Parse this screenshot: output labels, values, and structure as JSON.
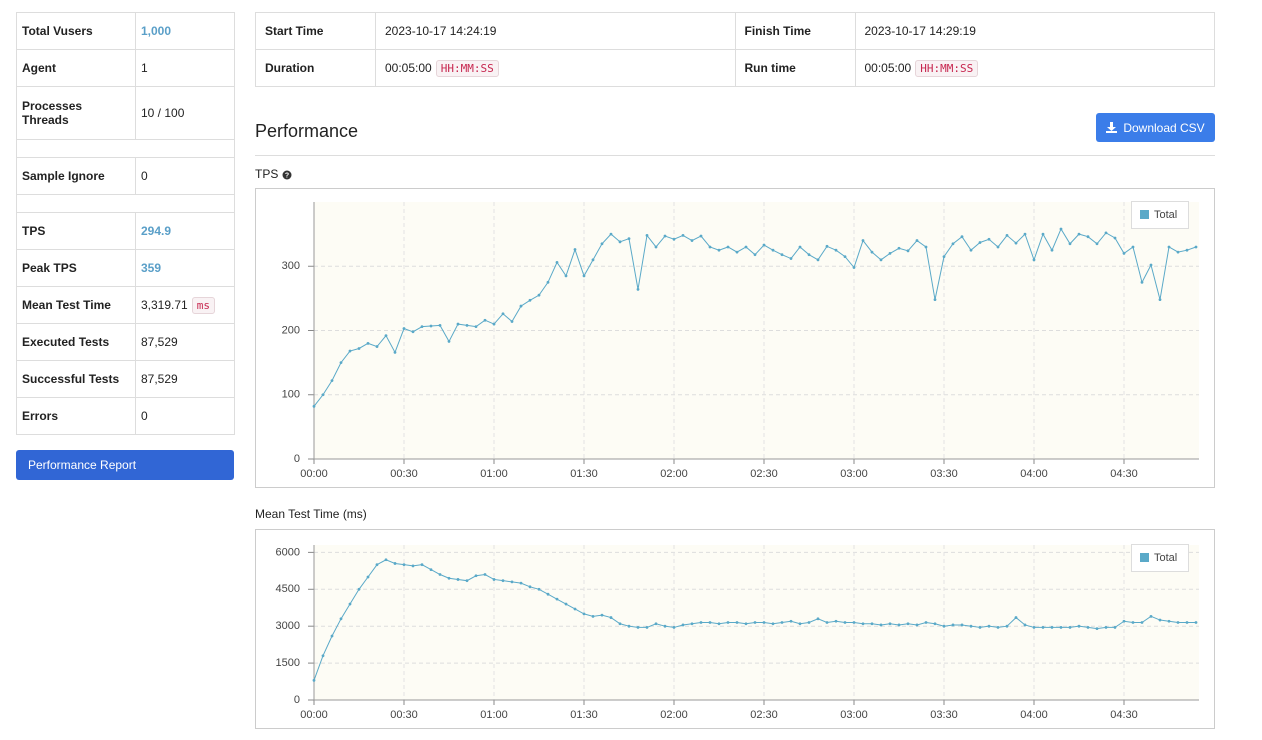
{
  "summary": {
    "rows": [
      {
        "label": "Total Vusers",
        "value": "1,000",
        "highlight": true
      },
      {
        "label": "Agent",
        "value": "1"
      },
      {
        "label": "Processes Threads",
        "value": "10 / 100"
      },
      {
        "label": "Sample Ignore",
        "value": "0"
      },
      {
        "label": "TPS",
        "value": "294.9",
        "highlight": true
      },
      {
        "label": "Peak TPS",
        "value": "359",
        "highlight": true
      },
      {
        "label": "Mean Test Time",
        "value": "3,319.71",
        "unit": "ms"
      },
      {
        "label": "Executed Tests",
        "value": "87,529"
      },
      {
        "label": "Successful Tests",
        "value": "87,529"
      },
      {
        "label": "Errors",
        "value": "0"
      }
    ],
    "button": "Performance Report"
  },
  "run_info": {
    "start_label": "Start Time",
    "start": "2023-10-17 14:24:19",
    "finish_label": "Finish Time",
    "finish": "2023-10-17 14:29:19",
    "duration_label": "Duration",
    "duration": "00:05:00",
    "duration_unit": "HH:MM:SS",
    "runtime_label": "Run time",
    "runtime": "00:05:00",
    "runtime_unit": "HH:MM:SS"
  },
  "section": {
    "title": "Performance",
    "download": "Download CSV"
  },
  "chart_data": [
    {
      "type": "line",
      "title": "TPS",
      "legend": "top-right",
      "grid": true,
      "x": [
        0,
        3,
        6,
        9,
        12,
        15,
        18,
        21,
        24,
        27,
        30,
        33,
        36,
        39,
        42,
        45,
        48,
        51,
        54,
        57,
        60,
        63,
        66,
        69,
        72,
        75,
        78,
        81,
        84,
        87,
        90,
        93,
        96,
        99,
        102,
        105,
        108,
        111,
        114,
        117,
        120,
        123,
        126,
        129,
        132,
        135,
        138,
        141,
        144,
        147,
        150,
        153,
        156,
        159,
        162,
        165,
        168,
        171,
        174,
        177,
        180,
        183,
        186,
        189,
        192,
        195,
        198,
        201,
        204,
        207,
        210,
        213,
        216,
        219,
        222,
        225,
        228,
        231,
        234,
        237,
        240,
        243,
        246,
        249,
        252,
        255,
        258,
        261,
        264,
        267,
        270,
        273,
        276,
        279,
        282,
        285,
        288,
        291,
        294
      ],
      "series": [
        {
          "name": "Total",
          "color": "#5aa9c8",
          "values": [
            82,
            100,
            122,
            150,
            168,
            172,
            180,
            175,
            192,
            166,
            203,
            198,
            206,
            207,
            208,
            183,
            210,
            208,
            206,
            216,
            210,
            226,
            214,
            238,
            247,
            255,
            275,
            306,
            285,
            326,
            285,
            310,
            335,
            350,
            338,
            343,
            264,
            348,
            330,
            347,
            342,
            348,
            340,
            347,
            330,
            325,
            330,
            322,
            330,
            318,
            333,
            325,
            318,
            312,
            330,
            318,
            310,
            331,
            325,
            315,
            298,
            340,
            322,
            310,
            320,
            328,
            324,
            340,
            330,
            248,
            315,
            335,
            346,
            325,
            337,
            342,
            330,
            348,
            336,
            350,
            310,
            350,
            325,
            358,
            335,
            350,
            346,
            335,
            352,
            344,
            320,
            330,
            275,
            302,
            248,
            330,
            322,
            325,
            330
          ]
        }
      ],
      "xlim": [
        0,
        295
      ],
      "ylim": [
        0,
        400
      ],
      "xticks": [
        {
          "value": 0,
          "label": "00:00"
        },
        {
          "value": 30,
          "label": "00:30"
        },
        {
          "value": 60,
          "label": "01:00"
        },
        {
          "value": 90,
          "label": "01:30"
        },
        {
          "value": 120,
          "label": "02:00"
        },
        {
          "value": 150,
          "label": "02:30"
        },
        {
          "value": 180,
          "label": "03:00"
        },
        {
          "value": 210,
          "label": "03:30"
        },
        {
          "value": 240,
          "label": "04:00"
        },
        {
          "value": 270,
          "label": "04:30"
        }
      ],
      "yticks": [
        0,
        100,
        200,
        300
      ]
    },
    {
      "type": "line",
      "title": "Mean Test Time (ms)",
      "legend": "top-right",
      "grid": true,
      "x": [
        0,
        3,
        6,
        9,
        12,
        15,
        18,
        21,
        24,
        27,
        30,
        33,
        36,
        39,
        42,
        45,
        48,
        51,
        54,
        57,
        60,
        63,
        66,
        69,
        72,
        75,
        78,
        81,
        84,
        87,
        90,
        93,
        96,
        99,
        102,
        105,
        108,
        111,
        114,
        117,
        120,
        123,
        126,
        129,
        132,
        135,
        138,
        141,
        144,
        147,
        150,
        153,
        156,
        159,
        162,
        165,
        168,
        171,
        174,
        177,
        180,
        183,
        186,
        189,
        192,
        195,
        198,
        201,
        204,
        207,
        210,
        213,
        216,
        219,
        222,
        225,
        228,
        231,
        234,
        237,
        240,
        243,
        246,
        249,
        252,
        255,
        258,
        261,
        264,
        267,
        270,
        273,
        276,
        279,
        282,
        285,
        288,
        291,
        294
      ],
      "series": [
        {
          "name": "Total",
          "color": "#5aa9c8",
          "values": [
            800,
            1800,
            2600,
            3300,
            3900,
            4500,
            5000,
            5500,
            5700,
            5550,
            5500,
            5450,
            5500,
            5300,
            5100,
            4950,
            4900,
            4850,
            5050,
            5100,
            4900,
            4850,
            4800,
            4750,
            4600,
            4500,
            4300,
            4100,
            3900,
            3700,
            3500,
            3400,
            3450,
            3350,
            3100,
            3000,
            2950,
            2950,
            3100,
            3000,
            2950,
            3050,
            3100,
            3150,
            3150,
            3100,
            3150,
            3150,
            3100,
            3150,
            3150,
            3100,
            3150,
            3200,
            3100,
            3150,
            3300,
            3150,
            3200,
            3150,
            3150,
            3100,
            3100,
            3050,
            3100,
            3050,
            3100,
            3050,
            3150,
            3100,
            3000,
            3050,
            3050,
            3000,
            2950,
            3000,
            2950,
            3000,
            3350,
            3050,
            2950,
            2950,
            2950,
            2950,
            2950,
            3000,
            2950,
            2900,
            2950,
            2950,
            3200,
            3150,
            3150,
            3400,
            3250,
            3200,
            3150,
            3150,
            3150
          ]
        }
      ],
      "xlim": [
        0,
        295
      ],
      "ylim": [
        0,
        6300
      ],
      "xticks": [
        {
          "value": 0,
          "label": "00:00"
        },
        {
          "value": 30,
          "label": "00:30"
        },
        {
          "value": 60,
          "label": "01:00"
        },
        {
          "value": 90,
          "label": "01:30"
        },
        {
          "value": 120,
          "label": "02:00"
        },
        {
          "value": 150,
          "label": "02:30"
        },
        {
          "value": 180,
          "label": "03:00"
        },
        {
          "value": 210,
          "label": "03:30"
        },
        {
          "value": 240,
          "label": "04:00"
        },
        {
          "value": 270,
          "label": "04:30"
        }
      ],
      "yticks": [
        0,
        1500,
        3000,
        4500,
        6000
      ]
    }
  ]
}
